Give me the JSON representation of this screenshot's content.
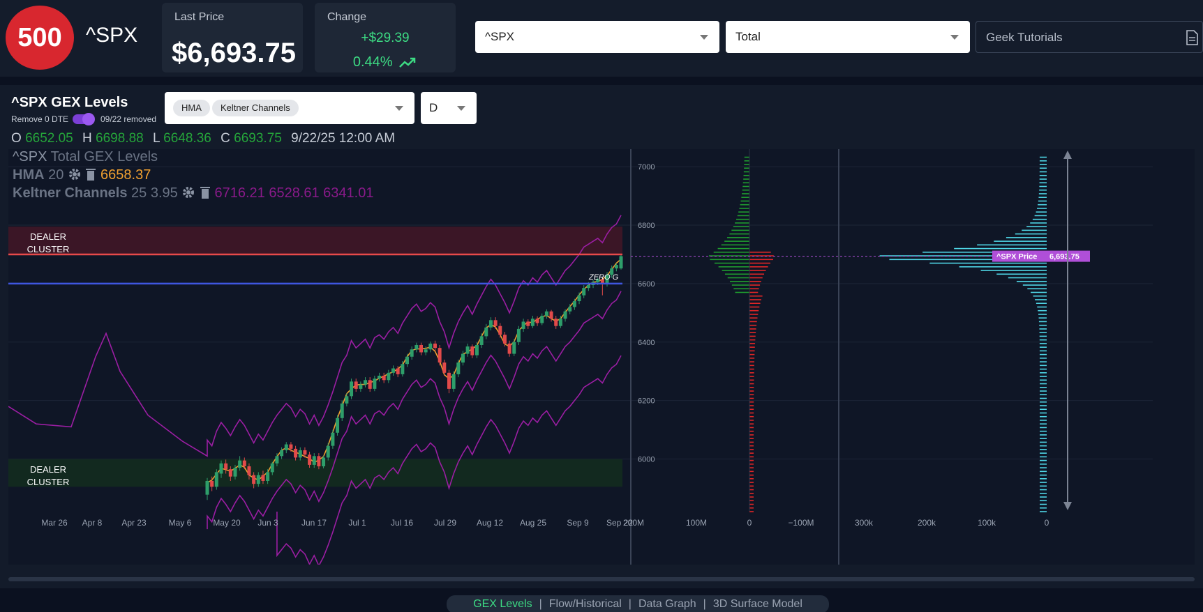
{
  "header": {
    "badge": "500",
    "ticker": "^SPX",
    "last_price_label": "Last Price",
    "last_price": "$6,693.75",
    "change_label": "Change",
    "change_abs": "+$29.39",
    "change_pct": "0.44%",
    "symbol_select": "^SPX",
    "type_select": "Total",
    "tutorials_select": "Geek Tutorials",
    "colors": {
      "badge": "#d8272f",
      "up": "#3ddc84"
    }
  },
  "panel": {
    "title": "^SPX GEX Levels",
    "remove_label": "Remove 0 DTE",
    "removed_label": "09/22 removed",
    "indicators": [
      "HMA",
      "Keltner Channels"
    ],
    "period": "D",
    "ohlc": {
      "o_label": "O",
      "o": "6652.05",
      "h_label": "H",
      "h": "6698.88",
      "l_label": "L",
      "l": "6648.36",
      "c_label": "C",
      "c": "6693.75",
      "date": "9/22/25 12:00 AM"
    }
  },
  "legend": {
    "sym": "^SPX",
    "title": "Total GEX Levels",
    "hma_label": "HMA",
    "hma_param": "20",
    "hma_value": "6658.37",
    "kc_label": "Keltner Channels",
    "kc_params": "25 3.95",
    "kc_values": "6716.21 6528.61 6341.01"
  },
  "chart_data": {
    "type": "candlestick",
    "x_ticks": [
      "Mar 26",
      "Apr 8",
      "Apr 23",
      "May 6",
      "May 20",
      "Jun 3",
      "Jun 17",
      "Jul 1",
      "Jul 16",
      "Jul 29",
      "Aug 12",
      "Aug 25",
      "Sep 9",
      "Sep 22"
    ],
    "y_ticks": [
      6000,
      6200,
      6400,
      6600,
      6800,
      7000
    ],
    "ylim": [
      5820,
      7060
    ],
    "zones": [
      {
        "label": "DEALER\nCLUSTER",
        "label_lines": [
          "DEALER",
          "CLUSTER"
        ],
        "from": 6700,
        "to": 6795,
        "color": "#e0314a"
      },
      {
        "label_lines": [
          "DEALER",
          "CLUSTER"
        ],
        "from": 5905,
        "to": 6000,
        "color": "#1f9d55"
      }
    ],
    "lines": [
      {
        "level": 6700,
        "color": "#e84a4a"
      },
      {
        "level": 6600,
        "color": "#3f56e0",
        "label": "ZERO G"
      }
    ],
    "candles": [
      [
        5878,
        5925,
        5860,
        5935
      ],
      [
        5925,
        5905,
        5890,
        5940
      ],
      [
        5905,
        5955,
        5895,
        5965
      ],
      [
        5950,
        5985,
        5935,
        5995
      ],
      [
        5985,
        5965,
        5950,
        5998
      ],
      [
        5965,
        5940,
        5925,
        5975
      ],
      [
        5940,
        5970,
        5930,
        5980
      ],
      [
        5970,
        5995,
        5960,
        6010
      ],
      [
        5995,
        5975,
        5965,
        6005
      ],
      [
        5975,
        5945,
        5930,
        5985
      ],
      [
        5945,
        5915,
        5900,
        5955
      ],
      [
        5915,
        5945,
        5905,
        5955
      ],
      [
        5945,
        5925,
        5915,
        5960
      ],
      [
        5925,
        5955,
        5915,
        5965
      ],
      [
        5955,
        5985,
        5945,
        5990
      ],
      [
        5985,
        6010,
        5975,
        6020
      ],
      [
        6010,
        6030,
        6000,
        6040
      ],
      [
        6030,
        6050,
        6020,
        6058
      ],
      [
        6050,
        6035,
        6025,
        6058
      ],
      [
        6035,
        6005,
        5995,
        6045
      ],
      [
        6005,
        6030,
        5995,
        6040
      ],
      [
        6030,
        6015,
        6005,
        6040
      ],
      [
        6015,
        5980,
        5970,
        6025
      ],
      [
        5980,
        6010,
        5970,
        6020
      ],
      [
        6010,
        5975,
        5965,
        6020
      ],
      [
        5975,
        6005,
        5968,
        6012
      ],
      [
        6005,
        6045,
        5995,
        6055
      ],
      [
        6045,
        6090,
        6035,
        6100
      ],
      [
        6090,
        6140,
        6080,
        6150
      ],
      [
        6140,
        6190,
        6130,
        6200
      ],
      [
        6190,
        6215,
        6180,
        6225
      ],
      [
        6215,
        6265,
        6205,
        6275
      ],
      [
        6265,
        6240,
        6230,
        6275
      ],
      [
        6240,
        6255,
        6230,
        6265
      ],
      [
        6255,
        6270,
        6245,
        6280
      ],
      [
        6270,
        6240,
        6230,
        6280
      ],
      [
        6240,
        6275,
        6232,
        6285
      ],
      [
        6275,
        6285,
        6265,
        6295
      ],
      [
        6285,
        6270,
        6260,
        6295
      ],
      [
        6270,
        6295,
        6260,
        6305
      ],
      [
        6295,
        6310,
        6285,
        6320
      ],
      [
        6310,
        6290,
        6280,
        6318
      ],
      [
        6290,
        6325,
        6282,
        6335
      ],
      [
        6325,
        6350,
        6315,
        6360
      ],
      [
        6350,
        6375,
        6340,
        6385
      ],
      [
        6375,
        6390,
        6365,
        6398
      ],
      [
        6390,
        6365,
        6355,
        6398
      ],
      [
        6365,
        6375,
        6355,
        6385
      ],
      [
        6375,
        6395,
        6365,
        6402
      ],
      [
        6395,
        6380,
        6370,
        6405
      ],
      [
        6380,
        6330,
        6320,
        6390
      ],
      [
        6330,
        6295,
        6285,
        6340
      ],
      [
        6295,
        6240,
        6225,
        6305
      ],
      [
        6240,
        6290,
        6230,
        6300
      ],
      [
        6290,
        6330,
        6280,
        6340
      ],
      [
        6330,
        6360,
        6320,
        6370
      ],
      [
        6360,
        6385,
        6350,
        6395
      ],
      [
        6385,
        6355,
        6345,
        6392
      ],
      [
        6355,
        6390,
        6345,
        6400
      ],
      [
        6390,
        6420,
        6380,
        6430
      ],
      [
        6420,
        6450,
        6410,
        6462
      ],
      [
        6450,
        6475,
        6440,
        6485
      ],
      [
        6475,
        6455,
        6445,
        6485
      ],
      [
        6455,
        6425,
        6415,
        6465
      ],
      [
        6425,
        6395,
        6385,
        6435
      ],
      [
        6395,
        6360,
        6350,
        6405
      ],
      [
        6360,
        6400,
        6352,
        6410
      ],
      [
        6400,
        6445,
        6390,
        6455
      ],
      [
        6445,
        6470,
        6435,
        6480
      ],
      [
        6470,
        6455,
        6445,
        6478
      ],
      [
        6455,
        6480,
        6448,
        6490
      ],
      [
        6480,
        6465,
        6455,
        6488
      ],
      [
        6465,
        6490,
        6458,
        6498
      ],
      [
        6490,
        6505,
        6480,
        6512
      ],
      [
        6505,
        6480,
        6470,
        6510
      ],
      [
        6480,
        6455,
        6445,
        6490
      ],
      [
        6455,
        6480,
        6448,
        6490
      ],
      [
        6480,
        6505,
        6470,
        6512
      ],
      [
        6505,
        6520,
        6495,
        6530
      ],
      [
        6520,
        6540,
        6510,
        6548
      ],
      [
        6540,
        6560,
        6530,
        6570
      ],
      [
        6560,
        6585,
        6550,
        6595
      ],
      [
        6585,
        6595,
        6575,
        6605
      ],
      [
        6595,
        6605,
        6585,
        6612
      ],
      [
        6605,
        6615,
        6595,
        6620
      ],
      [
        6615,
        6600,
        6560,
        6622
      ],
      [
        6600,
        6630,
        6590,
        6640
      ],
      [
        6630,
        6652,
        6620,
        6662
      ],
      [
        6652,
        6664,
        6642,
        6670
      ],
      [
        6652,
        6694,
        6648,
        6699
      ]
    ],
    "gex_net": {
      "x_ticks": [
        "200M",
        "100M",
        "0",
        "−100M"
      ],
      "note": "net gamma exposure by strike"
    },
    "gex_oi": {
      "x_ticks": [
        "300k",
        "200k",
        "100k",
        "0"
      ],
      "note": "open interest by strike"
    },
    "price_tag": {
      "label": "^SPX Price",
      "value": "6,693.75",
      "level": 6693.75,
      "color": "#b04fd8"
    }
  },
  "tabs": [
    {
      "label": "GEX Levels",
      "active": true
    },
    {
      "label": "Flow/Historical",
      "active": false
    },
    {
      "label": "Data Graph",
      "active": false
    },
    {
      "label": "3D Surface Model",
      "active": false
    }
  ]
}
